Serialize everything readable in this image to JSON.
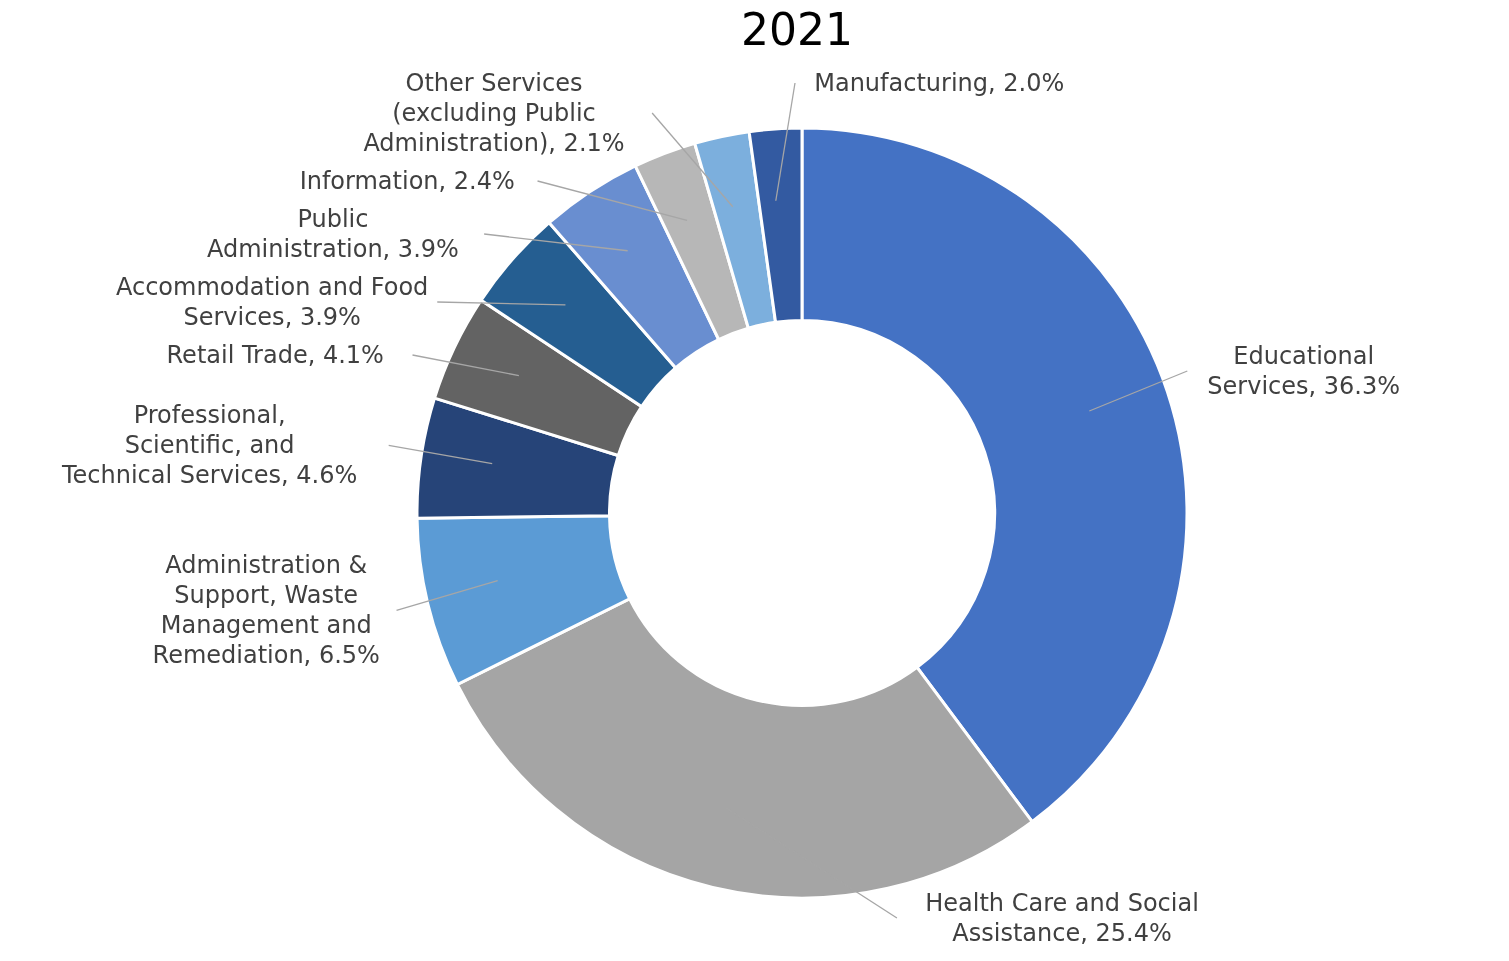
{
  "chart_data": {
    "type": "donut",
    "title": "2021",
    "categories": [
      "Educational Services",
      "Health Care and Social Assistance",
      "Administration & Support, Waste Management and Remediation",
      "Professional, Scientific, and Technical Services",
      "Retail Trade",
      "Accommodation and Food Services",
      "Public Administration",
      "Information",
      "Other Services (excluding Public Administration)",
      "Manufacturing"
    ],
    "values": [
      36.3,
      25.4,
      6.5,
      4.6,
      4.1,
      3.9,
      3.9,
      2.4,
      2.1,
      2.0
    ],
    "value_labels": [
      "36.3%",
      "25.4%",
      "6.5%",
      "4.6%",
      "4.1%",
      "3.9%",
      "3.9%",
      "2.4%",
      "2.1%",
      "2.0%"
    ],
    "colors": [
      "#4472c4",
      "#a5a5a5",
      "#5b9bd5",
      "#264478",
      "#636363",
      "#255e91",
      "#698ed0",
      "#b7b7b7",
      "#7cafdd",
      "#335aa1"
    ],
    "legend": false
  }
}
